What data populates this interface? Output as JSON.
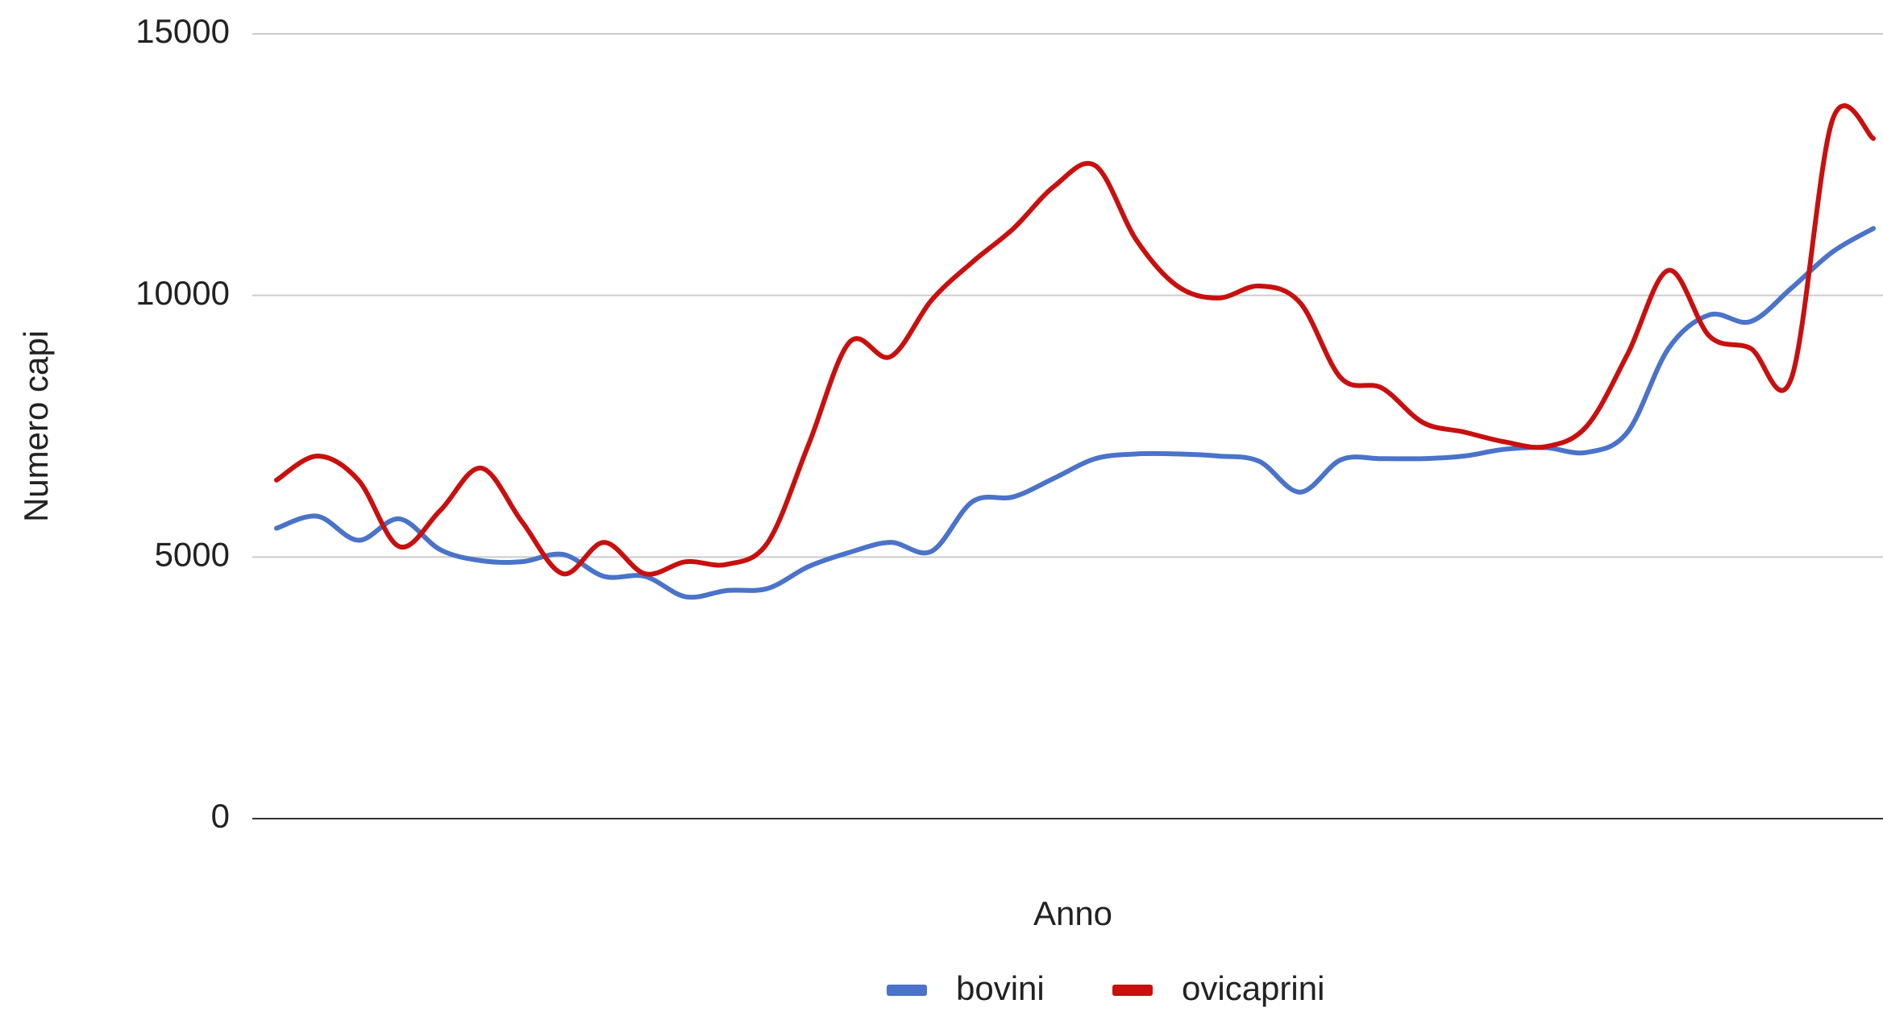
{
  "chart_data": {
    "type": "line",
    "y_label": "Numero capi",
    "x_label": "Anno",
    "categories": [
      null,
      null,
      null,
      null,
      null,
      null,
      null,
      null,
      null,
      null,
      null,
      null,
      null,
      null,
      null,
      null,
      null,
      null,
      null,
      null,
      null,
      null,
      null,
      null,
      null,
      null,
      null,
      null,
      null,
      null,
      null,
      null,
      null,
      null,
      null,
      null,
      null,
      null,
      null,
      null
    ],
    "series": [
      {
        "name": "bovini",
        "color": "#4a73c9",
        "values": [
          5550,
          5780,
          5320,
          5730,
          5140,
          4930,
          4910,
          5050,
          4630,
          4630,
          4240,
          4360,
          4400,
          4820,
          5090,
          5280,
          5110,
          6060,
          6150,
          6510,
          6880,
          6970,
          6970,
          6930,
          6830,
          6240,
          6860,
          6880,
          6880,
          6930,
          7060,
          7090,
          7000,
          7390,
          8990,
          9630,
          9500,
          10140,
          10830,
          11280
        ]
      },
      {
        "name": "ovicaprini",
        "color": "#c8100f",
        "values": [
          6470,
          6930,
          6470,
          5200,
          5890,
          6700,
          5670,
          4680,
          5280,
          4680,
          4910,
          4860,
          5280,
          7160,
          9110,
          8830,
          9910,
          10640,
          11280,
          12090,
          12480,
          11060,
          10180,
          9950,
          10180,
          9860,
          8420,
          8230,
          7570,
          7390,
          7200,
          7110,
          7500,
          8880,
          10480,
          9220,
          8990,
          8420,
          13350,
          13000
        ]
      }
    ],
    "ylim": [
      0,
      15000
    ],
    "yticks": [
      0,
      5000,
      10000,
      15000
    ],
    "grid": true,
    "legend": "bottom"
  }
}
